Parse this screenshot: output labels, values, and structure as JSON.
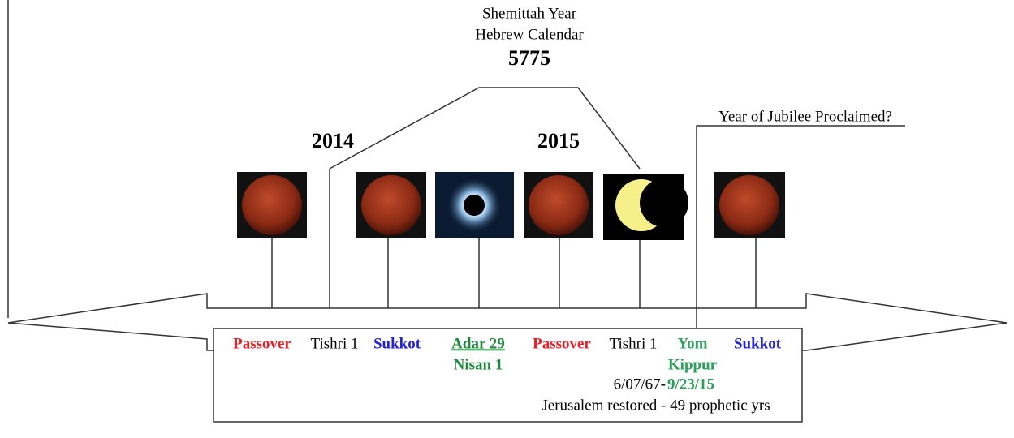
{
  "header": {
    "line1": "Shemittah Year",
    "line2": "Hebrew Calendar",
    "year": "5775"
  },
  "years": [
    "2014",
    "2015"
  ],
  "jubilee": "Year of Jubilee Proclaimed?",
  "labels": [
    "Passover",
    "Tishri 1",
    "Sukkot",
    "Adar 29",
    "Nisan 1",
    "Passover",
    "Tishri 1",
    "Yom",
    "Kippur",
    "Sukkot"
  ],
  "note": {
    "start": "6/07/67-",
    "end": "9/23/15",
    "text": "Jerusalem restored - 49 prophetic yrs"
  }
}
